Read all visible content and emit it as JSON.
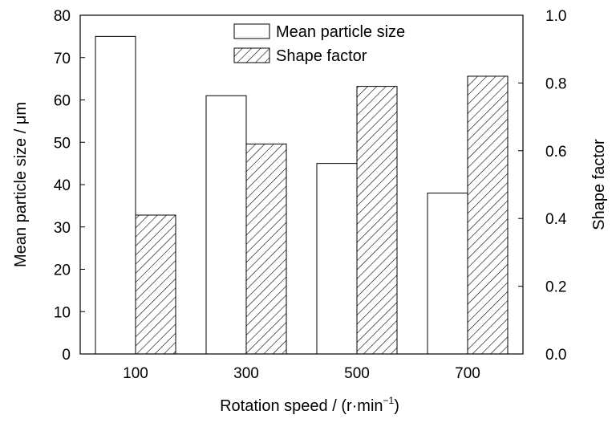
{
  "chart_data": {
    "type": "bar",
    "categories": [
      "100",
      "300",
      "500",
      "700"
    ],
    "series": [
      {
        "name": "Mean particle size",
        "axis": "left",
        "pattern": "none",
        "fill": "#ffffff",
        "values": [
          75,
          61,
          45,
          38
        ]
      },
      {
        "name": "Shape factor",
        "axis": "right",
        "pattern": "hatch",
        "fill": "#ffffff",
        "values": [
          0.41,
          0.62,
          0.79,
          0.82
        ]
      }
    ],
    "xlabel": {
      "main": "Rotation speed / (r·min",
      "sup": "−1",
      "tail": ")"
    },
    "ylabel_left": "Mean particle size / μm",
    "ylabel_right": "Shape factor",
    "ylim_left": [
      0,
      80
    ],
    "ylim_right": [
      0,
      1.0
    ],
    "yticks_left": [
      "0",
      "10",
      "20",
      "30",
      "40",
      "50",
      "60",
      "70",
      "80"
    ],
    "yticks_right": [
      "0.0",
      "0.2",
      "0.4",
      "0.6",
      "0.8",
      "1.0"
    ],
    "legend": {
      "placement": "top-center",
      "entries": [
        "Mean particle size",
        "Shape factor"
      ]
    },
    "grid": false,
    "colors": {
      "stroke": "#000000",
      "background": "#ffffff"
    }
  }
}
